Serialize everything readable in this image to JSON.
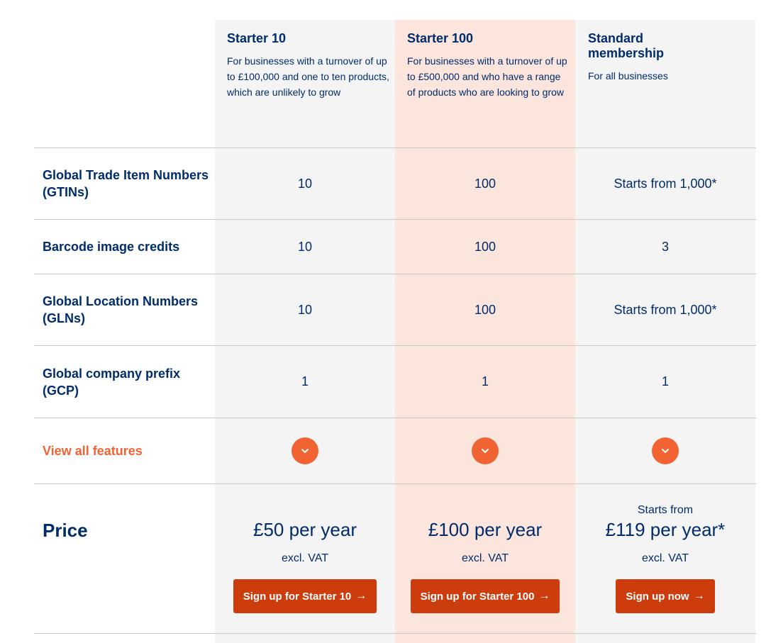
{
  "plans": [
    {
      "title": "Starter 10",
      "description": "For businesses with a turnover of up to £100,000 and one to ten products, which are unlikely to grow",
      "starts_from": "",
      "price": "£50 per year",
      "vat": "excl. VAT",
      "cta": "Sign up for Starter 10",
      "highlight": false
    },
    {
      "title": "Starter 100",
      "description": "For businesses with a turnover of up to £500,000 and who have a range of products who are looking to grow",
      "starts_from": "",
      "price": "£100 per year",
      "vat": "excl. VAT",
      "cta": "Sign up for Starter 100",
      "highlight": true
    },
    {
      "title": "Standard membership",
      "description": "For all businesses",
      "starts_from": "Starts from",
      "price": "£119 per year*",
      "vat": "excl. VAT",
      "cta": "Sign up now",
      "highlight": false
    }
  ],
  "rows": [
    {
      "label": "Global Trade Item Numbers (GTINs)",
      "values": [
        "10",
        "100",
        "Starts from 1,000*"
      ]
    },
    {
      "label": "Barcode image credits",
      "values": [
        "10",
        "100",
        "3"
      ]
    },
    {
      "label": "Global Location Numbers (GLNs)",
      "values": [
        "10",
        "100",
        "Starts from 1,000*"
      ]
    },
    {
      "label": "Global company prefix (GCP)",
      "values": [
        "1",
        "1",
        "1"
      ]
    }
  ],
  "features": {
    "label": "View all features",
    "icon": "chevron-down-icon"
  },
  "price_label": "Price",
  "colors": {
    "navy": "#002c6c",
    "orange": "#f26334",
    "button": "#cd3c0d",
    "column_grey": "#f4f4f4",
    "column_highlight": "#fce5dd"
  }
}
